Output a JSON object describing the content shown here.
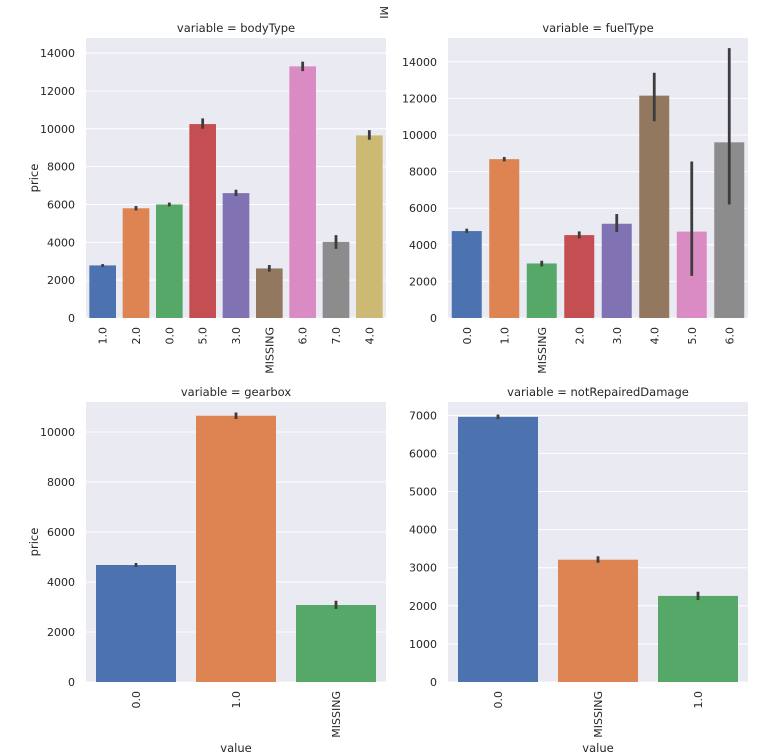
{
  "stray_label": "MI",
  "chart_data": [
    {
      "type": "bar",
      "title": "variable = bodyType",
      "xlabel": "",
      "ylabel": "price",
      "ylim": [
        0,
        14800
      ],
      "yticks": [
        0,
        2000,
        4000,
        6000,
        8000,
        10000,
        12000,
        14000
      ],
      "categories": [
        "1.0",
        "2.0",
        "0.0",
        "5.0",
        "3.0",
        "MISSING",
        "6.0",
        "7.0",
        "4.0"
      ],
      "values": [
        2780,
        5800,
        6000,
        10250,
        6600,
        2620,
        13300,
        4020,
        9650
      ],
      "ci_low": [
        2700,
        5680,
        5900,
        10000,
        6450,
        2450,
        13050,
        3650,
        9420
      ],
      "ci_high": [
        2850,
        5920,
        6100,
        10550,
        6780,
        2800,
        13550,
        4380,
        9930
      ],
      "colors": [
        "#4c72b0",
        "#dd8452",
        "#55a868",
        "#c44e52",
        "#8172b3",
        "#937860",
        "#da8bc3",
        "#8c8c8c",
        "#ccb974"
      ]
    },
    {
      "type": "bar",
      "title": "variable = fuelType",
      "xlabel": "",
      "ylabel": "",
      "ylim": [
        0,
        15300
      ],
      "yticks": [
        0,
        2000,
        4000,
        6000,
        8000,
        10000,
        12000,
        14000
      ],
      "categories": [
        "0.0",
        "1.0",
        "MISSING",
        "2.0",
        "3.0",
        "4.0",
        "5.0",
        "6.0"
      ],
      "values": [
        4750,
        8680,
        2980,
        4530,
        5150,
        12150,
        4720,
        9600
      ],
      "ci_low": [
        4650,
        8560,
        2820,
        4350,
        4700,
        10750,
        2300,
        6200
      ],
      "ci_high": [
        4880,
        8800,
        3130,
        4730,
        5680,
        13400,
        8550,
        14750
      ],
      "colors": [
        "#4c72b0",
        "#dd8452",
        "#55a868",
        "#c44e52",
        "#8172b3",
        "#937860",
        "#da8bc3",
        "#8c8c8c"
      ]
    },
    {
      "type": "bar",
      "title": "variable = gearbox",
      "xlabel": "value",
      "ylabel": "price",
      "ylim": [
        0,
        11200
      ],
      "yticks": [
        0,
        2000,
        4000,
        6000,
        8000,
        10000
      ],
      "categories": [
        "0.0",
        "1.0",
        "MISSING"
      ],
      "values": [
        4680,
        10650,
        3080
      ],
      "ci_low": [
        4600,
        10520,
        2920
      ],
      "ci_high": [
        4760,
        10780,
        3250
      ],
      "colors": [
        "#4c72b0",
        "#dd8452",
        "#55a868"
      ]
    },
    {
      "type": "bar",
      "title": "variable = notRepairedDamage",
      "xlabel": "value",
      "ylabel": "",
      "ylim": [
        0,
        7350
      ],
      "yticks": [
        0,
        1000,
        2000,
        3000,
        4000,
        5000,
        6000,
        7000
      ],
      "categories": [
        "0.0",
        "MISSING",
        "1.0"
      ],
      "values": [
        6960,
        3210,
        2260
      ],
      "ci_low": [
        6900,
        3130,
        2150
      ],
      "ci_high": [
        7020,
        3300,
        2370
      ],
      "colors": [
        "#4c72b0",
        "#dd8452",
        "#55a868"
      ]
    }
  ]
}
